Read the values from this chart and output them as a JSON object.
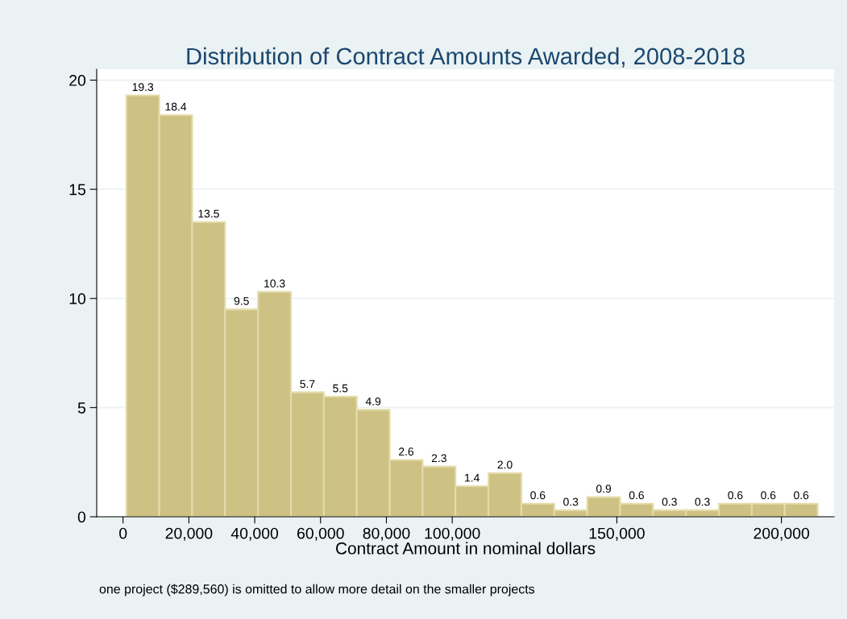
{
  "chart_data": {
    "type": "histogram",
    "title": "Distribution of Contract Amounts Awarded, 2008-2018",
    "xlabel": "Contract Amount in nominal dollars",
    "annotations": [
      "one project ($289,560) is omitted to allow more detail on the smaller projects"
    ],
    "bins": [
      1000,
      11000,
      21000,
      31000,
      41000,
      51000,
      61000,
      71000,
      81000,
      91000,
      101000,
      111000,
      121000,
      131000,
      141000,
      151000,
      161000,
      171000,
      181000,
      191000,
      201000,
      211000
    ],
    "values": [
      19.3,
      18.4,
      13.5,
      9.5,
      10.3,
      5.7,
      5.5,
      4.9,
      2.6,
      2.3,
      1.4,
      2.0,
      0.6,
      0.3,
      0.9,
      0.6,
      0.3,
      0.3,
      0.6,
      0.6,
      0.6
    ],
    "value_labels": [
      "19.3",
      "18.4",
      "13.5",
      "9.5",
      "10.3",
      "5.7",
      "5.5",
      "4.9",
      "2.6",
      "2.3",
      "1.4",
      "2.0",
      "0.6",
      "0.3",
      "0.9",
      "0.6",
      "0.3",
      "0.3",
      "0.6",
      "0.6",
      "0.6"
    ],
    "color": "#cdc283",
    "grid": "y",
    "xlim": [
      -8000,
      216000
    ],
    "ylim": [
      0,
      20.5
    ],
    "xticks": [
      0,
      {
        "value": 20000,
        "label": "20,000"
      },
      {
        "value": 40000,
        "label": "40,000"
      },
      {
        "value": 60000,
        "label": "60,000"
      },
      {
        "value": 80000,
        "label": "80,000"
      },
      {
        "value": 100000,
        "label": "100,000"
      },
      {
        "value": 150000,
        "label": "150,000"
      },
      {
        "value": 200000,
        "label": "200,000"
      }
    ],
    "yticks": [
      0,
      5,
      10,
      15,
      20
    ]
  }
}
